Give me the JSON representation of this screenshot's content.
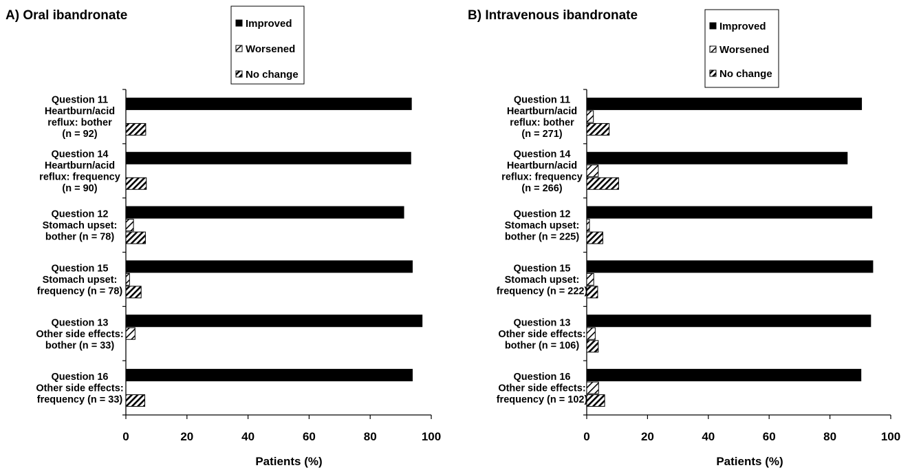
{
  "chart_data": [
    {
      "type": "bar",
      "orientation": "horizontal",
      "title": "A) Oral ibandronate",
      "xlabel": "Patients (%)",
      "xlim": [
        0,
        100
      ],
      "xticks": [
        "0",
        "20",
        "40",
        "60",
        "80",
        "100"
      ],
      "categories": [
        [
          "Question 11",
          "Heartburn/acid",
          "reflux: bother",
          "(n = 92)"
        ],
        [
          "Question 14",
          "Heartburn/acid",
          "reflux: frequency",
          "(n = 90)"
        ],
        [
          "Question 12",
          "Stomach upset:",
          "bother (n = 78)"
        ],
        [
          "Question 15",
          "Stomach upset:",
          "frequency (n = 78)"
        ],
        [
          "Question 13",
          "Other side effects:",
          "bother (n = 33)"
        ],
        [
          "Question 16",
          "Other side effects:",
          "frequency (n = 33)"
        ]
      ],
      "series": [
        {
          "name": "Improved",
          "pattern": "solid",
          "values": [
            93.5,
            93.3,
            91,
            93.8,
            97,
            93.8
          ]
        },
        {
          "name": "Worsened",
          "pattern": "half",
          "values": [
            0,
            0,
            2.5,
            1.2,
            3,
            0
          ]
        },
        {
          "name": "No change",
          "pattern": "hatch",
          "values": [
            6.5,
            6.7,
            6.4,
            5,
            0,
            6.2
          ]
        }
      ],
      "legend": [
        "Improved",
        "Worsened",
        "No change"
      ],
      "legend_position": "top-center"
    },
    {
      "type": "bar",
      "orientation": "horizontal",
      "title": "B) Intravenous ibandronate",
      "xlabel": "Patients (%)",
      "xlim": [
        0,
        100
      ],
      "xticks": [
        "0",
        "20",
        "40",
        "60",
        "80",
        "100"
      ],
      "categories": [
        [
          "Question 11",
          "Heartburn/acid",
          "reflux: bother",
          "(n = 271)"
        ],
        [
          "Question 14",
          "Heartburn/acid",
          "reflux: frequency",
          "(n = 266)"
        ],
        [
          "Question 12",
          "Stomach upset:",
          "bother (n = 225)"
        ],
        [
          "Question 15",
          "Stomach upset:",
          "frequency (n = 222)"
        ],
        [
          "Question 13",
          "Other side effects:",
          "bother (n = 106)"
        ],
        [
          "Question 16",
          "Other side effects:",
          "frequency (n = 102)"
        ]
      ],
      "series": [
        {
          "name": "Improved",
          "pattern": "solid",
          "values": [
            90.4,
            85.7,
            93.8,
            94.1,
            93.4,
            90.2
          ]
        },
        {
          "name": "Worsened",
          "pattern": "half",
          "values": [
            2.2,
            3.8,
            0.9,
            2.3,
            2.8,
            3.9
          ]
        },
        {
          "name": "No change",
          "pattern": "hatch",
          "values": [
            7.4,
            10.5,
            5.3,
            3.6,
            3.8,
            5.9
          ]
        }
      ],
      "legend": [
        "Improved",
        "Worsened",
        "No change"
      ],
      "legend_position": "top-center"
    }
  ]
}
